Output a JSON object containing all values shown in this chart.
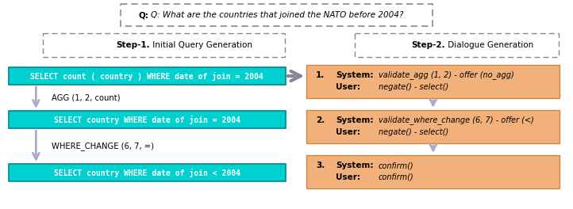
{
  "question_bold": "Q:",
  "question_italic": " What are the countries that joined the NATO before 2004?",
  "step1_label_bold": "Step-1.",
  "step1_label_normal": " Initial Query Generation",
  "step2_label_bold": "Step-2.",
  "step2_label_normal": " Dialogue Generation",
  "cyan_boxes": [
    "SELECT count ( country ) WHERE date of join = 2004",
    "SELECT country WHERE date of join = 2004",
    "SELECT country WHERE date of join < 2004"
  ],
  "agg_label": "AGG (1, 2, count)",
  "where_label": "WHERE_CHANGE (6, 7, =)",
  "dialogue_boxes": [
    {
      "num": "1.",
      "system_text": "validate_agg (1, 2) - offer (no_agg)",
      "user_text": "negate() - select()"
    },
    {
      "num": "2.",
      "system_text": "validate_where_change (6, 7) - offer (<)",
      "user_text": "negate() - select()"
    },
    {
      "num": "3.",
      "system_text": "confirm()",
      "user_text": "confirm()"
    }
  ],
  "cyan_color": "#00D0D0",
  "orange_color": "#F2B07A",
  "bg_color": "#FFFFFF",
  "arrow_gray": "#AAAACC",
  "dash_edge": "#888888",
  "cyan_edge": "#008888",
  "orange_edge": "#CC8840"
}
